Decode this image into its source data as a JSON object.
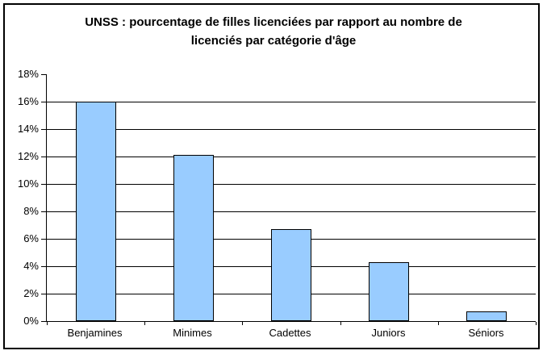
{
  "chart_data": {
    "type": "bar",
    "title_lines": [
      "UNSS : pourcentage de filles licenciées par rapport au nombre de",
      "licenciés par catégorie d'âge"
    ],
    "title": "UNSS : pourcentage de filles licenciées par rapport au nombre de licenciés par catégorie d'âge",
    "categories": [
      "Benjamines",
      "Minimes",
      "Cadettes",
      "Juniors",
      "Séniors"
    ],
    "values": [
      16.0,
      12.1,
      6.7,
      4.3,
      0.7
    ],
    "xlabel": "",
    "ylabel": "",
    "ylim": [
      0,
      18
    ],
    "ytick_step": 2,
    "ytick_labels": [
      "0%",
      "2%",
      "4%",
      "6%",
      "8%",
      "10%",
      "12%",
      "14%",
      "16%",
      "18%"
    ],
    "grid": true,
    "legend": false,
    "bar_color": "#99CCFF",
    "bar_border_color": "#000000",
    "axis_color": "#000000",
    "background_color": "#FFFFFF"
  }
}
